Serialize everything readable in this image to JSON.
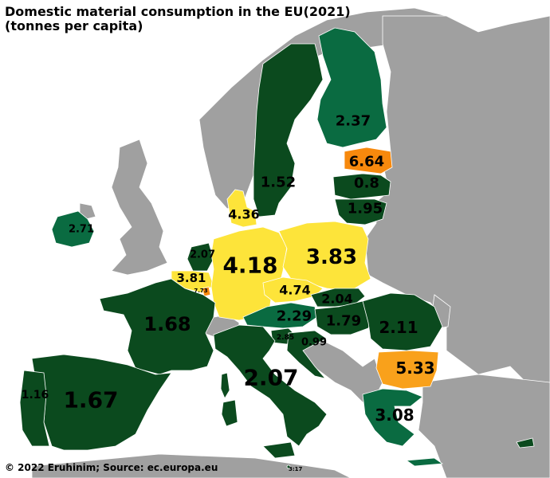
{
  "title_line1": "Domestic material consumption in the EU(2021)",
  "title_line2": "(tonnes per capita)",
  "footer": "© 2022 Eruhinim; Source: ec.europa.eu",
  "scale_label": "3:17",
  "legend_colors": {
    "very_high": "#f7890d",
    "high": "#f9a11b",
    "medium": "#fde43a",
    "low_mid": "#0a6b41",
    "low": "#0b4a1e",
    "non_eu": "#a0a0a0",
    "sea": "#ffffff"
  },
  "countries": [
    {
      "name": "Finland",
      "value": "2.37"
    },
    {
      "name": "Estonia",
      "value": "6.64"
    },
    {
      "name": "Sweden",
      "value": "1.52"
    },
    {
      "name": "Latvia",
      "value": "0.8"
    },
    {
      "name": "Lithuania",
      "value": "1.95"
    },
    {
      "name": "Denmark",
      "value": "4.36"
    },
    {
      "name": "Ireland",
      "value": "2.71"
    },
    {
      "name": "Netherlands",
      "value": "2.07"
    },
    {
      "name": "Germany",
      "value": "4.18"
    },
    {
      "name": "Poland",
      "value": "3.83"
    },
    {
      "name": "Belgium",
      "value": "3.81"
    },
    {
      "name": "Luxembourg",
      "value": "7.73"
    },
    {
      "name": "Czechia",
      "value": "4.74"
    },
    {
      "name": "Slovakia",
      "value": "2.04"
    },
    {
      "name": "France",
      "value": "1.68"
    },
    {
      "name": "Austria",
      "value": "2.29"
    },
    {
      "name": "Hungary",
      "value": "1.79"
    },
    {
      "name": "Romania",
      "value": "2.11"
    },
    {
      "name": "Slovenia",
      "value": "2.85"
    },
    {
      "name": "Croatia",
      "value": "0.99"
    },
    {
      "name": "Italy",
      "value": "2.07"
    },
    {
      "name": "Bulgaria",
      "value": "5.33"
    },
    {
      "name": "Portugal",
      "value": "1.16"
    },
    {
      "name": "Spain",
      "value": "1.67"
    },
    {
      "name": "Greece",
      "value": "3.08"
    }
  ]
}
